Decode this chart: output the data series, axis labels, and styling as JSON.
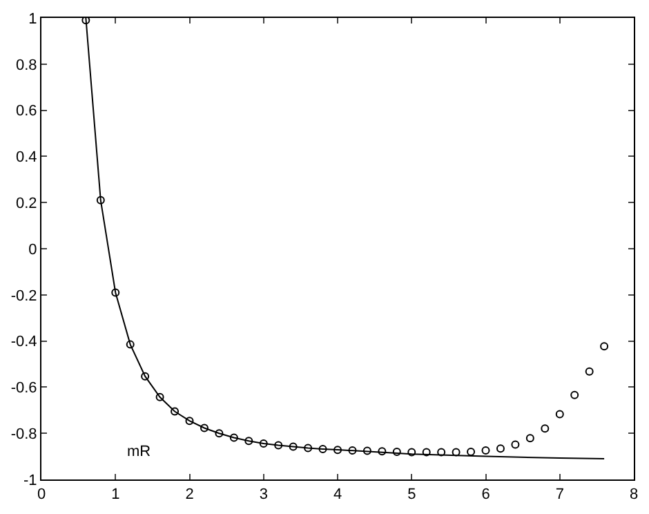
{
  "chart_data": {
    "type": "line",
    "xlim": [
      0,
      8
    ],
    "ylim": [
      -1,
      1
    ],
    "xticks": [
      0,
      1,
      2,
      3,
      4,
      5,
      6,
      7,
      8
    ],
    "yticks": [
      -1,
      -0.8,
      -0.6,
      -0.4,
      -0.2,
      0,
      0.2,
      0.4,
      0.6,
      0.8,
      1
    ],
    "series": [
      {
        "color": "#000000",
        "marker": "none",
        "line_style": "solid",
        "x": [
          0.6,
          0.8,
          1.0,
          1.2,
          1.4,
          1.6,
          1.8,
          2.0,
          2.2,
          2.4,
          2.6,
          2.8,
          3.0,
          3.2,
          3.4,
          3.6,
          3.8,
          4.0,
          5.0,
          6.0,
          7.0,
          7.6
        ],
        "values": [
          1.0,
          0.21,
          -0.19,
          -0.415,
          -0.553,
          -0.643,
          -0.705,
          -0.746,
          -0.777,
          -0.8,
          -0.819,
          -0.833,
          -0.844,
          -0.852,
          -0.858,
          -0.864,
          -0.868,
          -0.871,
          -0.89,
          -0.9,
          -0.907,
          -0.91
        ]
      },
      {
        "type": "scatter",
        "color": "#000000",
        "marker": "circle",
        "x": [
          0.6,
          0.8,
          1.0,
          1.2,
          1.4,
          1.6,
          1.8,
          2.0,
          2.2,
          2.4,
          2.6,
          2.8,
          3.0,
          3.2,
          3.4,
          3.6,
          3.8,
          4.0,
          4.2,
          4.4,
          4.6,
          4.8,
          5.0,
          5.2,
          5.4,
          5.6,
          5.8,
          6.0,
          6.2,
          6.4,
          6.6,
          6.8,
          7.0,
          7.2,
          7.4,
          7.6
        ],
        "values": [
          0.99,
          0.21,
          -0.19,
          -0.415,
          -0.553,
          -0.643,
          -0.705,
          -0.746,
          -0.777,
          -0.8,
          -0.819,
          -0.833,
          -0.844,
          -0.852,
          -0.858,
          -0.864,
          -0.868,
          -0.872,
          -0.874,
          -0.876,
          -0.878,
          -0.88,
          -0.882,
          -0.882,
          -0.882,
          -0.882,
          -0.88,
          -0.874,
          -0.866,
          -0.849,
          -0.821,
          -0.779,
          -0.717,
          -0.634,
          -0.532,
          -0.423
        ]
      }
    ],
    "annotations": [
      "mR"
    ]
  }
}
